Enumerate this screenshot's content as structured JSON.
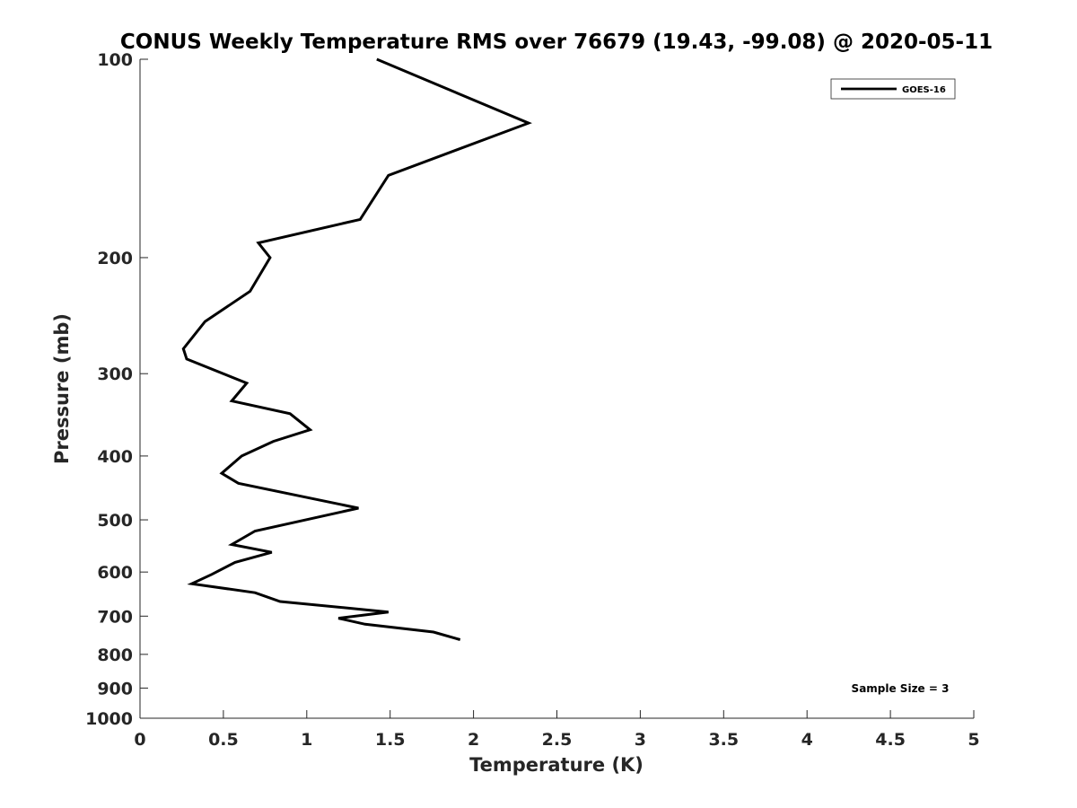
{
  "chart_data": {
    "type": "line",
    "title": "CONUS Weekly Temperature RMS over 76679 (19.43, -99.08) @ 2020-05-11",
    "xlabel": "Temperature (K)",
    "ylabel": "Pressure (mb)",
    "xlim": [
      0,
      5
    ],
    "ylim": [
      100,
      1000
    ],
    "y_scale": "log",
    "y_reversed": true,
    "x_ticks": [
      "0",
      "0.5",
      "1",
      "1.5",
      "2",
      "2.5",
      "3",
      "3.5",
      "4",
      "4.5",
      "5"
    ],
    "y_ticks": [
      "100",
      "200",
      "300",
      "400",
      "500",
      "600",
      "700",
      "800",
      "900",
      "1000"
    ],
    "grid": false,
    "legend": {
      "placement": "top-right",
      "entries": [
        "GOES-16"
      ]
    },
    "annotation": "Sample Size = 3",
    "series": [
      {
        "name": "GOES-16",
        "color": "#000000",
        "x": [
          1.42,
          2.33,
          1.49,
          1.32,
          0.71,
          0.78,
          0.66,
          0.39,
          0.26,
          0.28,
          0.64,
          0.55,
          0.9,
          1.02,
          0.8,
          0.61,
          0.49,
          0.59,
          1.31,
          0.69,
          0.55,
          0.79,
          0.57,
          0.43,
          0.31,
          0.69,
          0.84,
          1.49,
          1.19,
          1.35,
          1.76,
          1.92
        ],
        "y": [
          100,
          125,
          150,
          175,
          190,
          200,
          225,
          250,
          275,
          285,
          310,
          330,
          345,
          365,
          380,
          400,
          425,
          440,
          480,
          520,
          545,
          560,
          580,
          605,
          625,
          645,
          665,
          690,
          705,
          720,
          740,
          760
        ]
      }
    ]
  }
}
